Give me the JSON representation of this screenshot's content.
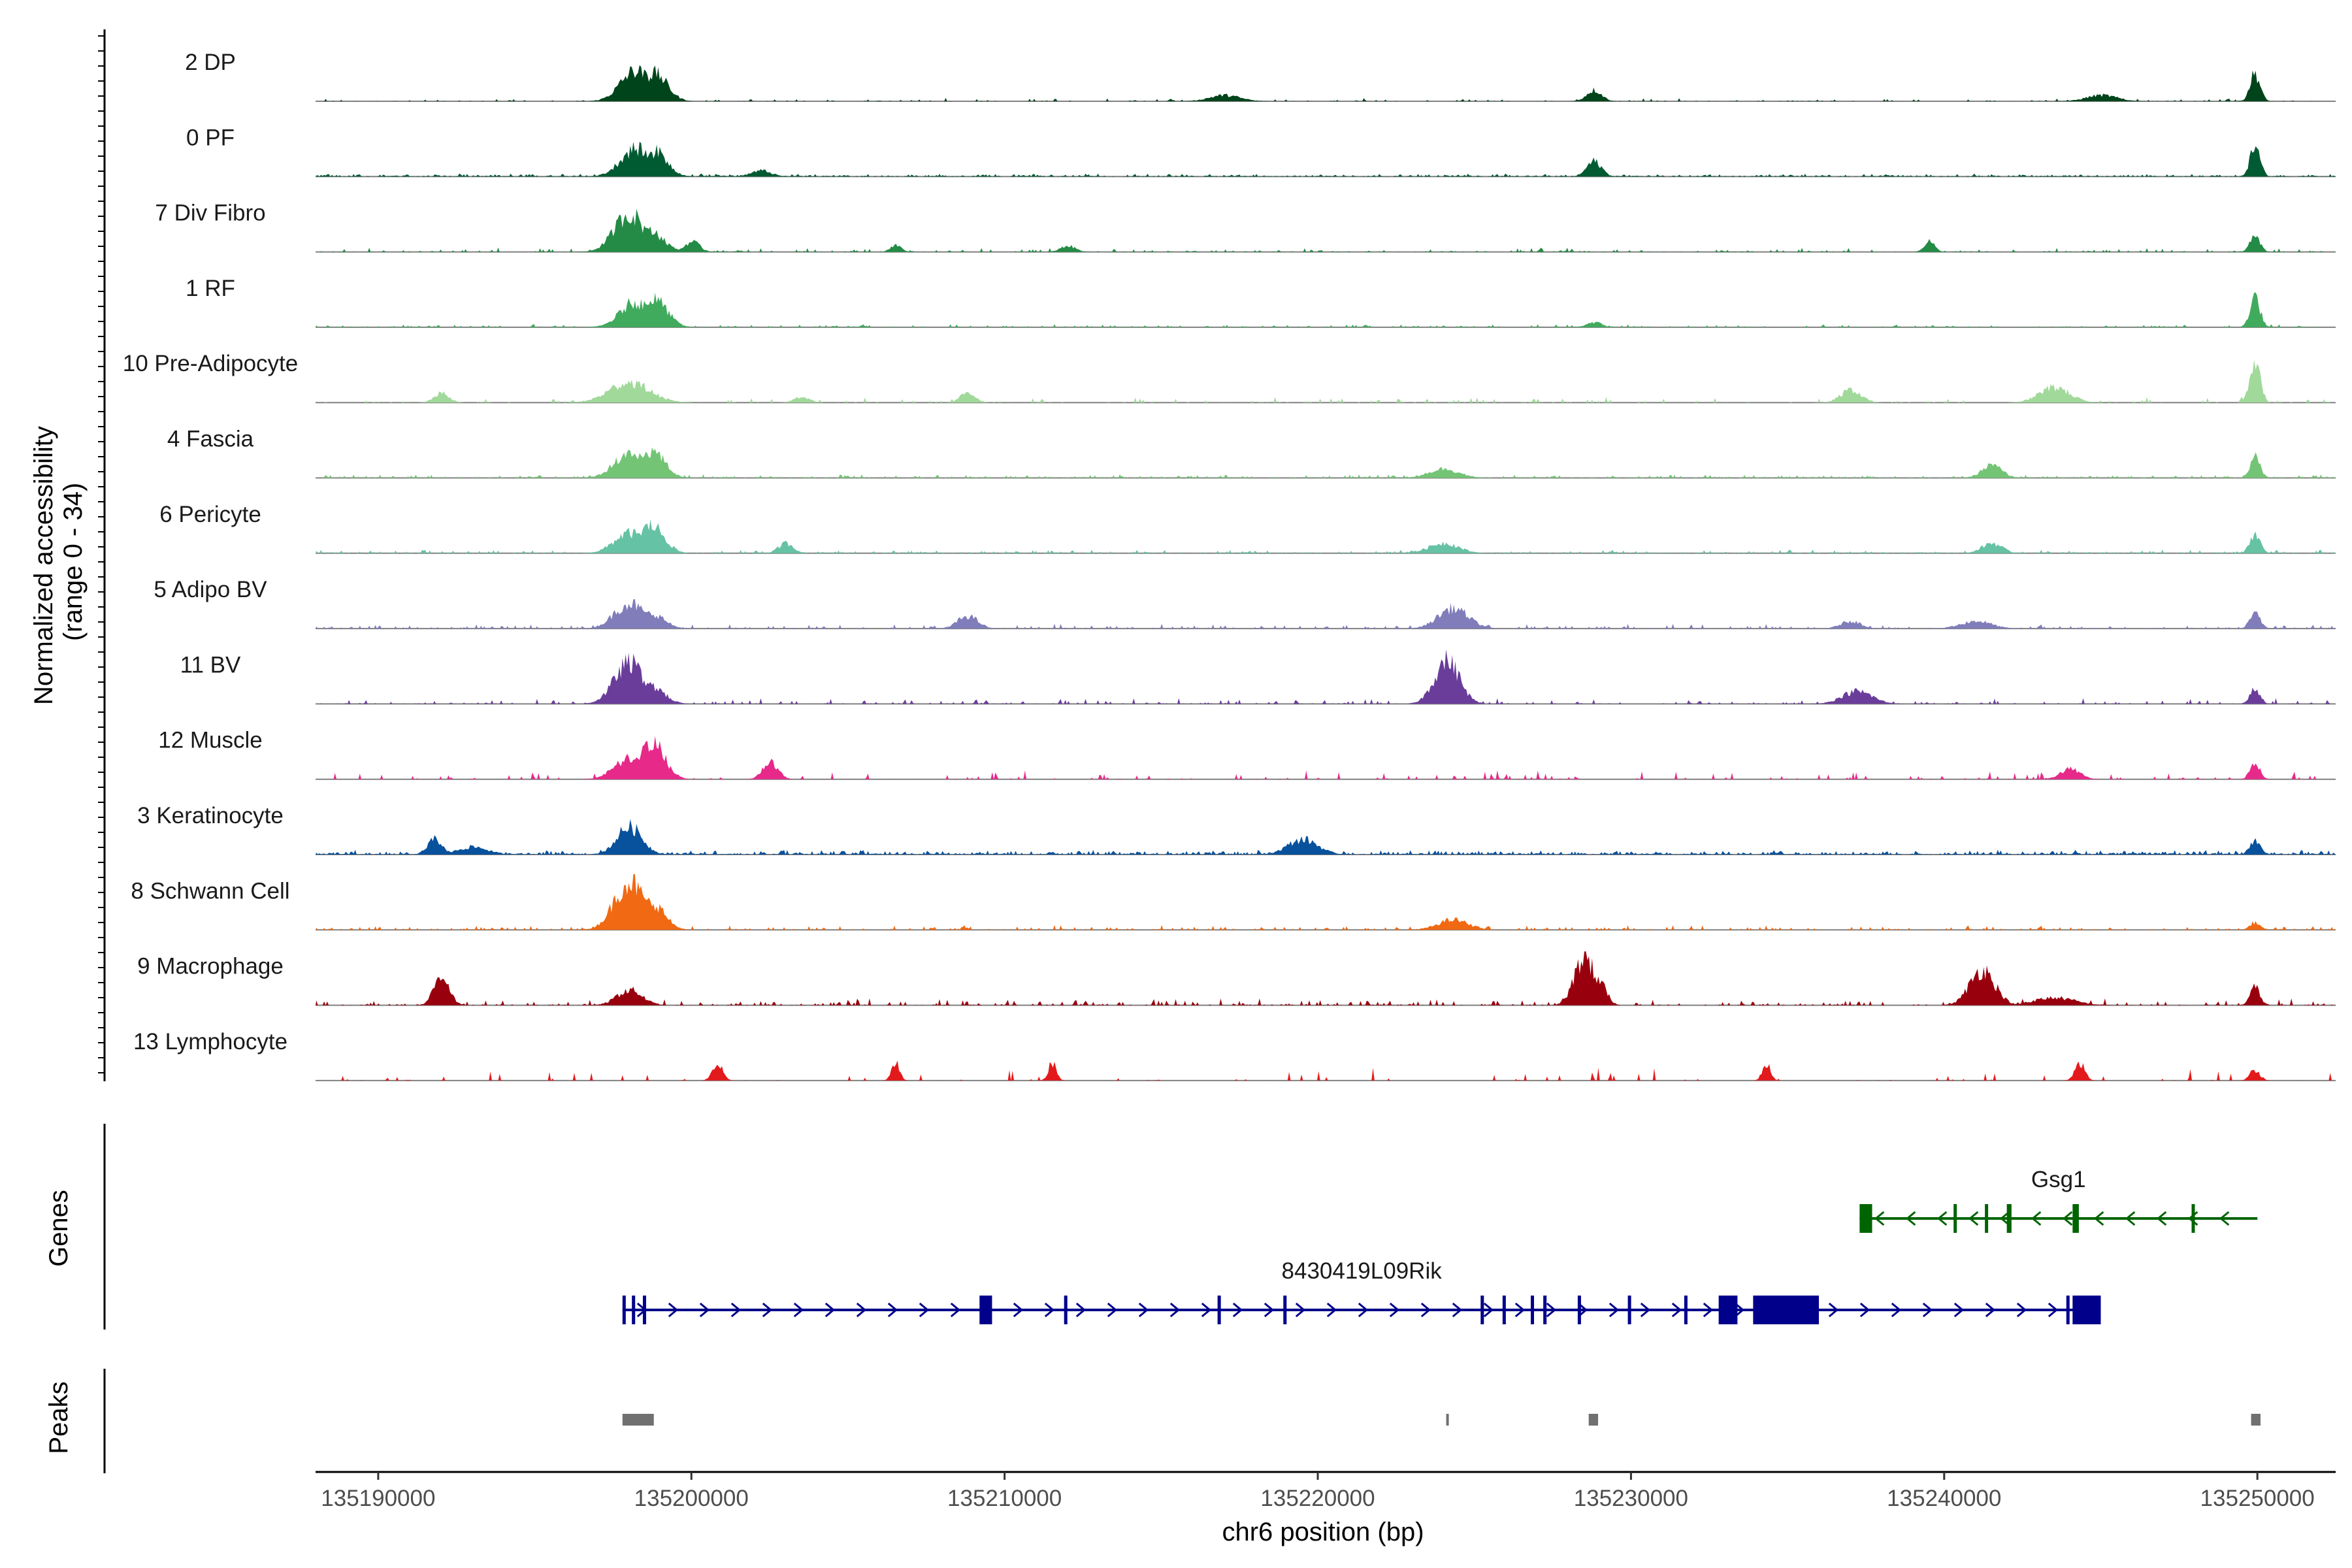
{
  "chart_data": {
    "type": "area",
    "title": "",
    "xlabel": "chr6 position (bp)",
    "ylabel_line1": "Normalized accessibility",
    "ylabel_line2": "(range 0 - 34)",
    "y_range": [
      0,
      34
    ],
    "xlim": [
      135188000,
      135252500
    ],
    "x_ticks": [
      135190000,
      135200000,
      135210000,
      135220000,
      135230000,
      135240000,
      135250000
    ],
    "x_tick_labels": [
      "135190000",
      "135200000",
      "135210000",
      "135220000",
      "135230000",
      "135240000",
      "135250000"
    ],
    "tracks": [
      {
        "name": "2 DP",
        "color": "#00441b",
        "noise": 0.06,
        "density": 0.2,
        "peaks": [
          [
            135198200,
            0.6,
            300
          ],
          [
            135198800,
            0.55,
            250
          ],
          [
            135217000,
            0.12,
            300
          ],
          [
            135228800,
            0.22,
            150
          ],
          [
            135245000,
            0.12,
            300
          ],
          [
            135249900,
            0.55,
            100
          ]
        ]
      },
      {
        "name": "0 PF",
        "color": "#005a32",
        "noise": 0.05,
        "density": 0.8,
        "peaks": [
          [
            135198200,
            0.55,
            300
          ],
          [
            135198800,
            0.5,
            250
          ],
          [
            135202200,
            0.12,
            200
          ],
          [
            135228800,
            0.3,
            150
          ],
          [
            135249900,
            0.6,
            100
          ]
        ]
      },
      {
        "name": "7 Div Fibro",
        "color": "#238b45",
        "noise": 0.07,
        "density": 0.3,
        "peaks": [
          [
            135198000,
            0.75,
            300
          ],
          [
            135198700,
            0.4,
            250
          ],
          [
            135200000,
            0.2,
            150
          ],
          [
            135206500,
            0.15,
            100
          ],
          [
            135212000,
            0.12,
            150
          ],
          [
            135239500,
            0.22,
            100
          ],
          [
            135249900,
            0.3,
            100
          ]
        ]
      },
      {
        "name": "1 RF",
        "color": "#41ab5d",
        "noise": 0.05,
        "density": 0.4,
        "peaks": [
          [
            135198200,
            0.5,
            300
          ],
          [
            135198800,
            0.55,
            250
          ],
          [
            135228800,
            0.1,
            150
          ],
          [
            135249900,
            0.6,
            100
          ]
        ]
      },
      {
        "name": "10 Pre-Adipocyte",
        "color": "#a1d99b",
        "noise": 0.1,
        "density": 0.18,
        "peaks": [
          [
            135192000,
            0.18,
            150
          ],
          [
            135198000,
            0.4,
            400
          ],
          [
            135203500,
            0.12,
            150
          ],
          [
            135208800,
            0.2,
            150
          ],
          [
            135237000,
            0.25,
            200
          ],
          [
            135243500,
            0.3,
            300
          ],
          [
            135249900,
            0.9,
            100
          ]
        ]
      },
      {
        "name": "4 Fascia",
        "color": "#74c476",
        "noise": 0.06,
        "density": 0.5,
        "peaks": [
          [
            135198000,
            0.5,
            300
          ],
          [
            135198700,
            0.55,
            250
          ],
          [
            135224000,
            0.18,
            300
          ],
          [
            135241500,
            0.25,
            200
          ],
          [
            135249900,
            0.4,
            100
          ]
        ]
      },
      {
        "name": "6 Pericyte",
        "color": "#66c2a4",
        "noise": 0.06,
        "density": 0.5,
        "peaks": [
          [
            135198000,
            0.4,
            300
          ],
          [
            135198700,
            0.55,
            250
          ],
          [
            135203000,
            0.2,
            150
          ],
          [
            135224000,
            0.2,
            300
          ],
          [
            135241500,
            0.2,
            200
          ],
          [
            135249900,
            0.4,
            100
          ]
        ]
      },
      {
        "name": "5 Adipo BV",
        "color": "#807dba",
        "noise": 0.08,
        "density": 0.35,
        "peaks": [
          [
            135198000,
            0.5,
            300
          ],
          [
            135198700,
            0.3,
            250
          ],
          [
            135208800,
            0.25,
            200
          ],
          [
            135224300,
            0.4,
            300
          ],
          [
            135237000,
            0.15,
            200
          ],
          [
            135241000,
            0.15,
            300
          ],
          [
            135249900,
            0.35,
            100
          ]
        ]
      },
      {
        "name": "11 BV",
        "color": "#6a3d9a",
        "noise": 0.1,
        "density": 0.25,
        "peaks": [
          [
            135198000,
            0.8,
            300
          ],
          [
            135198700,
            0.35,
            250
          ],
          [
            135224100,
            0.85,
            250
          ],
          [
            135237200,
            0.25,
            300
          ],
          [
            135249900,
            0.3,
            100
          ]
        ]
      },
      {
        "name": "12 Muscle",
        "color": "#e7298a",
        "noise": 0.15,
        "density": 0.15,
        "peaks": [
          [
            135198000,
            0.4,
            300
          ],
          [
            135198700,
            0.75,
            250
          ],
          [
            135202500,
            0.35,
            150
          ],
          [
            135244000,
            0.2,
            200
          ],
          [
            135249900,
            0.3,
            100
          ]
        ]
      },
      {
        "name": "3 Keratinocyte",
        "color": "#08519c",
        "noise": 0.08,
        "density": 0.85,
        "peaks": [
          [
            135191800,
            0.3,
            150
          ],
          [
            135193000,
            0.15,
            300
          ],
          [
            135198000,
            0.55,
            250
          ],
          [
            135219500,
            0.3,
            300
          ],
          [
            135249900,
            0.3,
            100
          ]
        ]
      },
      {
        "name": "8 Schwann Cell",
        "color": "#f16913",
        "noise": 0.08,
        "density": 0.35,
        "peaks": [
          [
            135198000,
            0.95,
            300
          ],
          [
            135198700,
            0.55,
            250
          ],
          [
            135224300,
            0.2,
            300
          ],
          [
            135249900,
            0.15,
            100
          ]
        ]
      },
      {
        "name": "9 Macrophage",
        "color": "#99000d",
        "noise": 0.12,
        "density": 0.3,
        "peaks": [
          [
            135192000,
            0.6,
            150
          ],
          [
            135198000,
            0.3,
            250
          ],
          [
            135228500,
            0.95,
            200
          ],
          [
            135228900,
            0.6,
            150
          ],
          [
            135241200,
            0.7,
            250
          ],
          [
            135243500,
            0.15,
            400
          ],
          [
            135249900,
            0.35,
            100
          ]
        ]
      },
      {
        "name": "13 Lymphocyte",
        "color": "#e31a1c",
        "noise": 0.22,
        "density": 0.07,
        "peaks": [
          [
            135200800,
            0.35,
            100
          ],
          [
            135206500,
            0.35,
            80
          ],
          [
            135211500,
            0.35,
            80
          ],
          [
            135234300,
            0.35,
            80
          ],
          [
            135244300,
            0.35,
            100
          ],
          [
            135249900,
            0.2,
            100
          ]
        ]
      }
    ],
    "gene_track_label": "Genes",
    "genes": [
      {
        "name": "Gsg1",
        "color": "#006400",
        "strand": "-",
        "start": 135237300,
        "end": 135250000,
        "exons": [
          [
            135237300,
            135237700
          ],
          [
            135240300,
            135240400
          ],
          [
            135241300,
            135241400
          ],
          [
            135242000,
            135242150
          ],
          [
            135244100,
            135244300
          ],
          [
            135247900,
            135248000
          ]
        ]
      },
      {
        "name": "8430419L09Rik",
        "color": "#00008b",
        "strand": "+",
        "start": 135197800,
        "end": 135245000,
        "exons": [
          [
            135197800,
            135197900
          ],
          [
            135198100,
            135198200
          ],
          [
            135198450,
            135198550
          ],
          [
            135209200,
            135209600
          ],
          [
            135211900,
            135212000
          ],
          [
            135216800,
            135216900
          ],
          [
            135218900,
            135219000
          ],
          [
            135225200,
            135225300
          ],
          [
            135225900,
            135226000
          ],
          [
            135226800,
            135226900
          ],
          [
            135227200,
            135227300
          ],
          [
            135228300,
            135228400
          ],
          [
            135229900,
            135230000
          ],
          [
            135231700,
            135231800
          ],
          [
            135232800,
            135233400
          ],
          [
            135233900,
            135236000
          ],
          [
            135243900,
            135244000
          ],
          [
            135244100,
            135245000
          ]
        ]
      }
    ],
    "peak_track_label": "Peaks",
    "peaks_regions": [
      [
        135197800,
        135198800
      ],
      [
        135224100,
        135224150
      ],
      [
        135228650,
        135228950
      ],
      [
        135249800,
        135250100
      ]
    ],
    "peak_color": "#707070"
  }
}
